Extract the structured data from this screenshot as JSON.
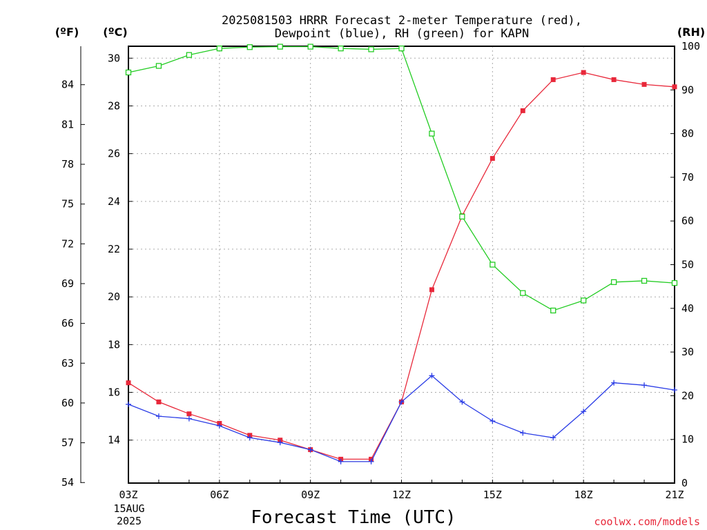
{
  "title_line1": "2025081503 HRRR Forecast 2-meter Temperature (red),",
  "title_line2": "Dewpoint (blue), RH (green) for KAPN",
  "unit_f": "(ºF)",
  "unit_c": "(ºC)",
  "unit_rh": "(RH)",
  "xlabel": "Forecast Time (UTC)",
  "credit": "coolwx.com/models",
  "date_day": "15AUG",
  "date_year": "2025",
  "colors": {
    "temperature": "#e8283a",
    "dewpoint": "#2a3ce6",
    "rh": "#22cc22",
    "grid": "#aaaaaa"
  },
  "chart_data": {
    "type": "line",
    "x": [
      "03Z",
      "04Z",
      "05Z",
      "06Z",
      "07Z",
      "08Z",
      "09Z",
      "10Z",
      "11Z",
      "12Z",
      "13Z",
      "14Z",
      "15Z",
      "16Z",
      "17Z",
      "18Z",
      "19Z",
      "20Z",
      "21Z"
    ],
    "x_tick_labels": [
      "03Z",
      "06Z",
      "09Z",
      "12Z",
      "15Z",
      "18Z",
      "21Z"
    ],
    "series": [
      {
        "name": "Temperature",
        "axis": "celsius",
        "marker": "filled-square",
        "values": [
          16.4,
          15.6,
          15.1,
          14.7,
          14.2,
          14.0,
          13.6,
          13.2,
          13.2,
          15.6,
          20.3,
          23.4,
          25.8,
          27.8,
          29.1,
          29.4,
          29.1,
          28.9,
          28.8
        ]
      },
      {
        "name": "Dewpoint",
        "axis": "celsius",
        "marker": "plus",
        "values": [
          15.5,
          15.0,
          14.9,
          14.6,
          14.1,
          13.9,
          13.6,
          13.1,
          13.1,
          15.6,
          16.7,
          15.6,
          14.8,
          14.3,
          14.1,
          15.2,
          16.4,
          16.3,
          16.1
        ]
      },
      {
        "name": "RH",
        "axis": "rh",
        "marker": "open-square",
        "values": [
          94,
          95.5,
          98,
          99.5,
          99.8,
          99.9,
          99.9,
          99.5,
          99.3,
          99.5,
          80,
          61,
          50,
          43.5,
          39.5,
          41.8,
          46,
          46.3,
          45.8
        ]
      }
    ],
    "y_celsius": {
      "ticks": [
        14,
        16,
        18,
        20,
        22,
        24,
        26,
        28,
        30
      ],
      "range": [
        12.2,
        30.5
      ]
    },
    "y_fahrenheit": {
      "ticks": [
        54,
        57,
        60,
        63,
        66,
        69,
        72,
        75,
        78,
        81,
        84
      ]
    },
    "y_rh": {
      "ticks": [
        0,
        10,
        20,
        30,
        40,
        50,
        60,
        70,
        80,
        90,
        100
      ],
      "range": [
        0,
        100
      ]
    },
    "grid": true
  }
}
